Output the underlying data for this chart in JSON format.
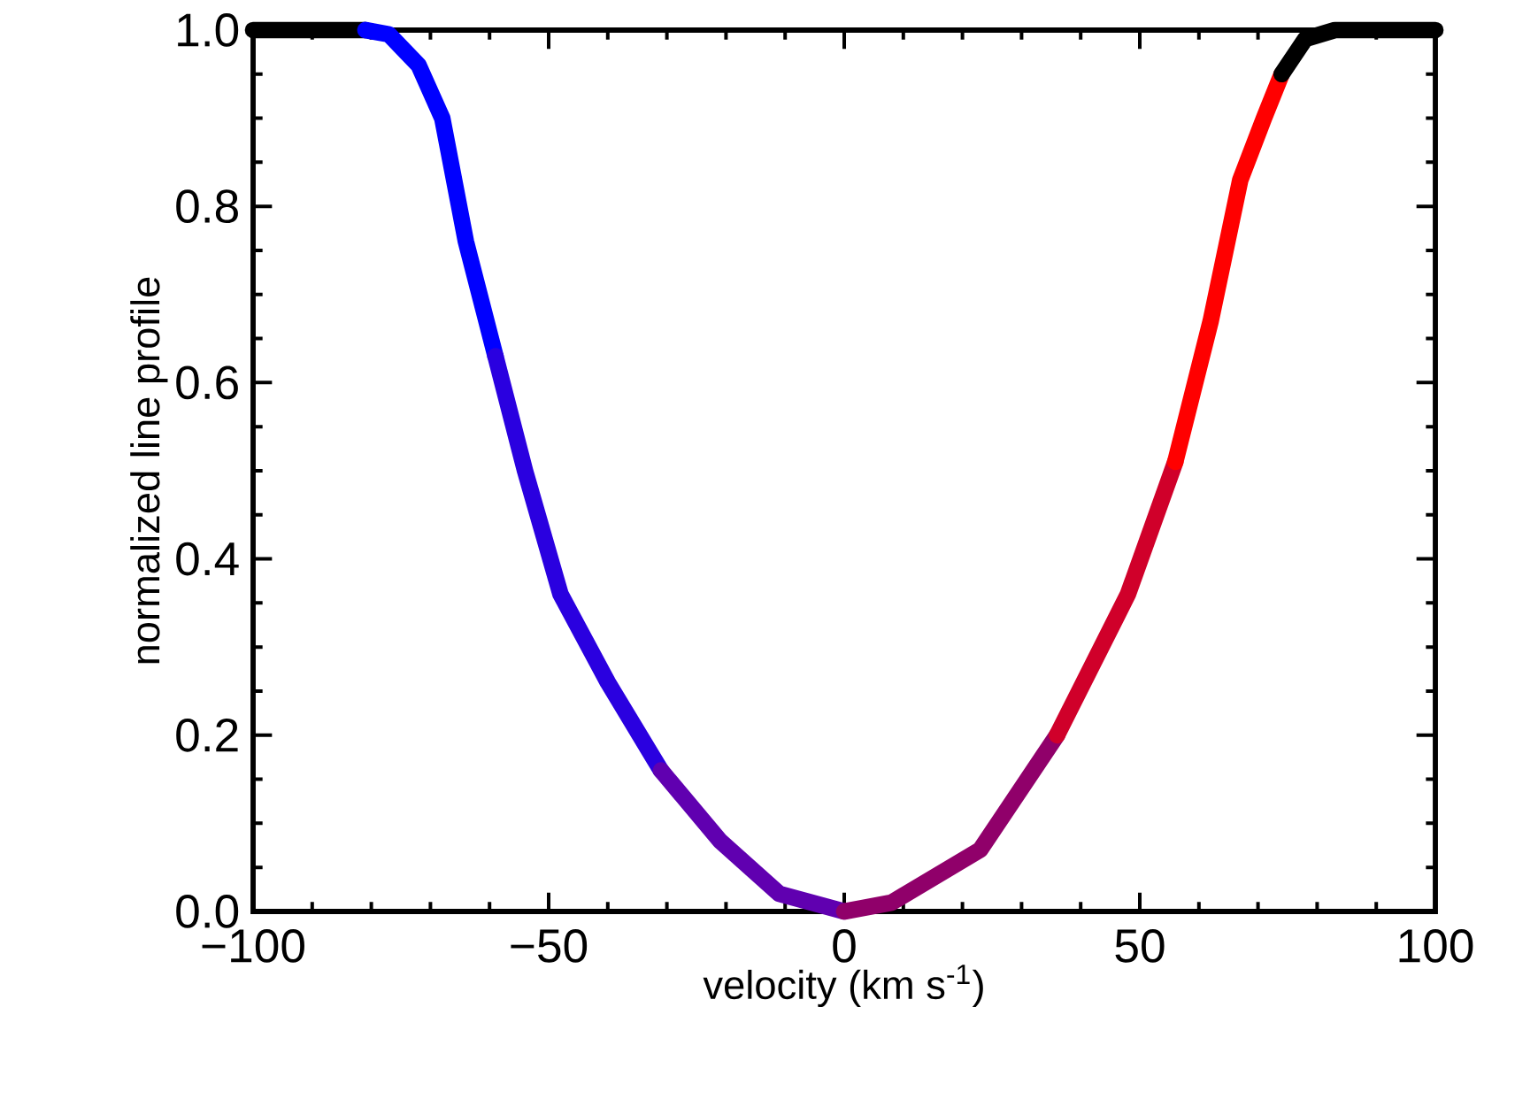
{
  "chart_data": {
    "type": "line",
    "xlabel": "velocity (km s$^{-1}$)",
    "ylabel": "normalized line profile",
    "xlim": [
      -100,
      100
    ],
    "ylim": [
      0,
      1
    ],
    "xticks": [
      {
        "value": -100,
        "label": "−100"
      },
      {
        "value": -50,
        "label": "−50"
      },
      0,
      50,
      100
    ],
    "yticks": [
      {
        "value": 0,
        "label": "0.0"
      },
      {
        "value": 0.2,
        "label": "0.2"
      },
      {
        "value": 0.4,
        "label": "0.4"
      },
      {
        "value": 0.6,
        "label": "0.6"
      },
      {
        "value": 0.8,
        "label": "0.8"
      },
      {
        "value": 1,
        "label": "1.0"
      }
    ],
    "series": [
      {
        "color": "#000000",
        "x": [
          -100,
          -81
        ],
        "values": [
          1.0,
          1.0
        ]
      },
      {
        "color": "#0000ff",
        "x": [
          -81,
          -77,
          -72,
          -68,
          -64,
          -59
        ],
        "values": [
          1.0,
          0.995,
          0.96,
          0.9,
          0.76,
          0.63
        ]
      },
      {
        "color": "#2a00e0",
        "x": [
          -59,
          -54,
          -48,
          -40,
          -31
        ],
        "values": [
          0.63,
          0.5,
          0.36,
          0.26,
          0.16
        ]
      },
      {
        "color": "#6000b0",
        "x": [
          -31,
          -21,
          -11,
          0
        ],
        "values": [
          0.16,
          0.08,
          0.02,
          0.0
        ]
      },
      {
        "color": "#90006a",
        "x": [
          0,
          8,
          23,
          36
        ],
        "values": [
          0.0,
          0.01,
          0.07,
          0.2
        ]
      },
      {
        "color": "#d0002a",
        "x": [
          36,
          48,
          56
        ],
        "values": [
          0.2,
          0.36,
          0.51
        ]
      },
      {
        "color": "#ff0000",
        "x": [
          56,
          62,
          67,
          71,
          74
        ],
        "values": [
          0.51,
          0.67,
          0.83,
          0.9,
          0.95
        ]
      },
      {
        "color": "#000000",
        "x": [
          74,
          78,
          83,
          100
        ],
        "values": [
          0.95,
          0.99,
          1.0,
          1.0
        ]
      }
    ]
  }
}
